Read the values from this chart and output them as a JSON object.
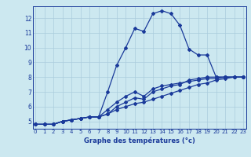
{
  "xlabel": "Graphe des températures (°c)",
  "background_color": "#cce8f0",
  "grid_color": "#aaccdd",
  "line_color": "#1a3a9a",
  "x_ticks": [
    0,
    1,
    2,
    3,
    4,
    5,
    6,
    7,
    8,
    9,
    10,
    11,
    12,
    13,
    14,
    15,
    16,
    17,
    18,
    19,
    20,
    21,
    22,
    23
  ],
  "y_ticks": [
    5,
    6,
    7,
    8,
    9,
    10,
    11,
    12
  ],
  "ylim": [
    4.5,
    12.8
  ],
  "xlim": [
    -0.3,
    23.3
  ],
  "curves": [
    {
      "x": [
        0,
        1,
        2,
        3,
        4,
        5,
        6,
        7,
        8,
        9,
        10,
        11,
        12,
        13,
        14,
        15,
        16,
        17,
        18,
        19,
        20,
        21,
        22,
        23
      ],
      "y": [
        4.8,
        4.8,
        4.8,
        5.0,
        5.1,
        5.2,
        5.3,
        5.3,
        7.0,
        8.8,
        10.0,
        11.3,
        11.1,
        12.3,
        12.5,
        12.3,
        11.5,
        9.9,
        9.5,
        9.5,
        8.0,
        8.0,
        8.0,
        8.0
      ]
    },
    {
      "x": [
        0,
        1,
        2,
        3,
        4,
        5,
        6,
        7,
        8,
        9,
        10,
        11,
        12,
        13,
        14,
        15,
        16,
        17,
        18,
        19,
        20,
        21,
        22,
        23
      ],
      "y": [
        4.8,
        4.8,
        4.8,
        5.0,
        5.1,
        5.2,
        5.3,
        5.3,
        5.5,
        5.8,
        6.0,
        6.2,
        6.3,
        6.5,
        6.7,
        6.9,
        7.1,
        7.3,
        7.5,
        7.6,
        7.8,
        7.9,
        8.0,
        8.0
      ]
    },
    {
      "x": [
        0,
        1,
        2,
        3,
        4,
        5,
        6,
        7,
        8,
        9,
        10,
        11,
        12,
        13,
        14,
        15,
        16,
        17,
        18,
        19,
        20,
        21,
        22,
        23
      ],
      "y": [
        4.8,
        4.8,
        4.8,
        5.0,
        5.1,
        5.2,
        5.3,
        5.3,
        5.8,
        6.3,
        6.7,
        7.0,
        6.7,
        7.2,
        7.4,
        7.5,
        7.6,
        7.7,
        7.8,
        7.9,
        7.9,
        8.0,
        8.0,
        8.0
      ]
    },
    {
      "x": [
        0,
        1,
        2,
        3,
        4,
        5,
        6,
        7,
        8,
        9,
        10,
        11,
        12,
        13,
        14,
        15,
        16,
        17,
        18,
        19,
        20,
        21,
        22,
        23
      ],
      "y": [
        4.8,
        4.8,
        4.8,
        5.0,
        5.1,
        5.2,
        5.3,
        5.3,
        5.5,
        6.0,
        6.3,
        6.6,
        6.5,
        7.0,
        7.2,
        7.4,
        7.5,
        7.8,
        7.9,
        8.0,
        8.0,
        8.0,
        8.0,
        8.0
      ]
    }
  ]
}
